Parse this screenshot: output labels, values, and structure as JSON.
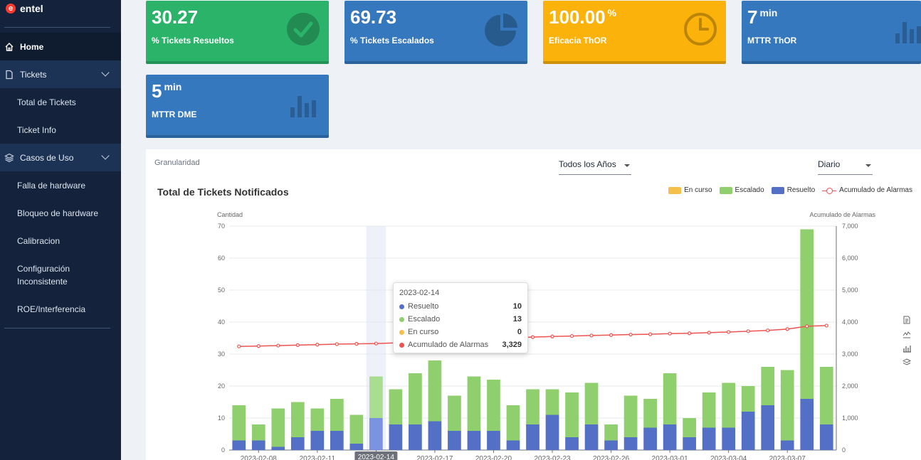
{
  "brand": {
    "name": "entel",
    "mark": "e"
  },
  "sidebar": {
    "home": "Home",
    "tickets": {
      "label": "Tickets",
      "items": [
        "Total de Tickets",
        "Ticket Info"
      ]
    },
    "casos": {
      "label": "Casos de Uso",
      "items": [
        "Falla de hardware",
        "Bloqueo de hardware",
        "Calibracion",
        "Configuración Inconsistente",
        "ROE/Interferencia"
      ]
    }
  },
  "kpis": [
    {
      "value": "30.27",
      "unit": "",
      "label": "% Tickets Resueltos",
      "icon": "check-circle-icon",
      "color": "#2bb36a"
    },
    {
      "value": "69.73",
      "unit": "",
      "label": "% Tickets Escalados",
      "icon": "pie-icon",
      "color": "#3578bd"
    },
    {
      "value": "100.00",
      "unit": "%",
      "label": "Eficacia ThOR",
      "icon": "clock-icon",
      "color": "#fbb20b"
    },
    {
      "value": "7",
      "unit": "min",
      "label": "MTTR ThOR",
      "icon": "bar-icon",
      "color": "#3578bd"
    },
    {
      "value": "5",
      "unit": "min",
      "label": "MTTR DME",
      "icon": "bar-icon",
      "color": "#3578bd"
    }
  ],
  "filters": {
    "granularity_label": "Granularidad",
    "year_select": "Todos los Años",
    "period_select": "Diario"
  },
  "chart_data": {
    "type": "bar",
    "title": "Total de Tickets Notificados",
    "ylabel": "Cantidad",
    "y2label": "Acumulado de Alarmas",
    "ylim": [
      0,
      70
    ],
    "y2lim": [
      0,
      7000
    ],
    "yticks": [
      "0",
      "10",
      "20",
      "30",
      "40",
      "50",
      "60",
      "70"
    ],
    "y2ticks": [
      "0",
      "1,000",
      "2,000",
      "3,000",
      "4,000",
      "5,000",
      "6,000",
      "7,000"
    ],
    "x_tick_labels": [
      "2023-02-08",
      "2023-02-11",
      "2023-02-14",
      "2023-02-17",
      "2023-02-20",
      "2023-02-23",
      "2023-02-26",
      "2023-03-01",
      "2023-03-04",
      "2023-03-07"
    ],
    "highlighted_tick": "2023-02-14",
    "categories": [
      "2023-02-07",
      "2023-02-08",
      "2023-02-09",
      "2023-02-10",
      "2023-02-11",
      "2023-02-12",
      "2023-02-13",
      "2023-02-14",
      "2023-02-15",
      "2023-02-16",
      "2023-02-17",
      "2023-02-18",
      "2023-02-19",
      "2023-02-20",
      "2023-02-21",
      "2023-02-22",
      "2023-02-23",
      "2023-02-24",
      "2023-02-25",
      "2023-02-26",
      "2023-02-27",
      "2023-02-28",
      "2023-03-01",
      "2023-03-02",
      "2023-03-03",
      "2023-03-04",
      "2023-03-05",
      "2023-03-06",
      "2023-03-07",
      "2023-03-08",
      "2023-03-09"
    ],
    "series": [
      {
        "name": "En curso",
        "color": "#f5c04a",
        "values": [
          0,
          0,
          0,
          0,
          0,
          0,
          0,
          0,
          0,
          0,
          0,
          0,
          0,
          0,
          0,
          0,
          0,
          0,
          0,
          0,
          0,
          0,
          0,
          0,
          0,
          0,
          0,
          0,
          0,
          0,
          0
        ]
      },
      {
        "name": "Escalado",
        "color": "#8fcf6e",
        "values": [
          11,
          5,
          12,
          11,
          7,
          10,
          9,
          13,
          11,
          16,
          19,
          11,
          17,
          16,
          11,
          11,
          8,
          14,
          13,
          5,
          13,
          9,
          16,
          6,
          11,
          14,
          8,
          12,
          22,
          53,
          18
        ]
      },
      {
        "name": "Resuelto",
        "color": "#5470c6",
        "values": [
          3,
          3,
          1,
          4,
          6,
          6,
          2,
          10,
          8,
          8,
          9,
          6,
          6,
          6,
          3,
          8,
          11,
          4,
          8,
          3,
          4,
          7,
          8,
          4,
          7,
          7,
          12,
          14,
          3,
          16,
          8
        ]
      },
      {
        "name": "Acumulado de Alarmas",
        "color": "#ef5350",
        "values": [
          3240,
          3250,
          3265,
          3280,
          3295,
          3310,
          3320,
          3329,
          3350,
          3380,
          3410,
          3440,
          3465,
          3490,
          3510,
          3530,
          3550,
          3565,
          3580,
          3595,
          3610,
          3620,
          3640,
          3650,
          3670,
          3690,
          3715,
          3740,
          3780,
          3870,
          3890
        ]
      }
    ],
    "legend": [
      "En curso",
      "Escalado",
      "Resuelto",
      "Acumulado de Alarmas"
    ],
    "legend_position": "top-right",
    "grid": true
  },
  "tooltip": {
    "title": "2023-02-14",
    "rows": [
      {
        "name": "Resuelto",
        "value": "10",
        "color": "#5470c6"
      },
      {
        "name": "Escalado",
        "value": "13",
        "color": "#8fcf6e"
      },
      {
        "name": "En curso",
        "value": "0",
        "color": "#f5c04a"
      },
      {
        "name": "Acumulado de Alarmas",
        "value": "3,329",
        "color": "#ef5350"
      }
    ]
  },
  "toolbox": [
    "data-view-icon",
    "line-icon",
    "bar-icon",
    "stack-icon"
  ]
}
